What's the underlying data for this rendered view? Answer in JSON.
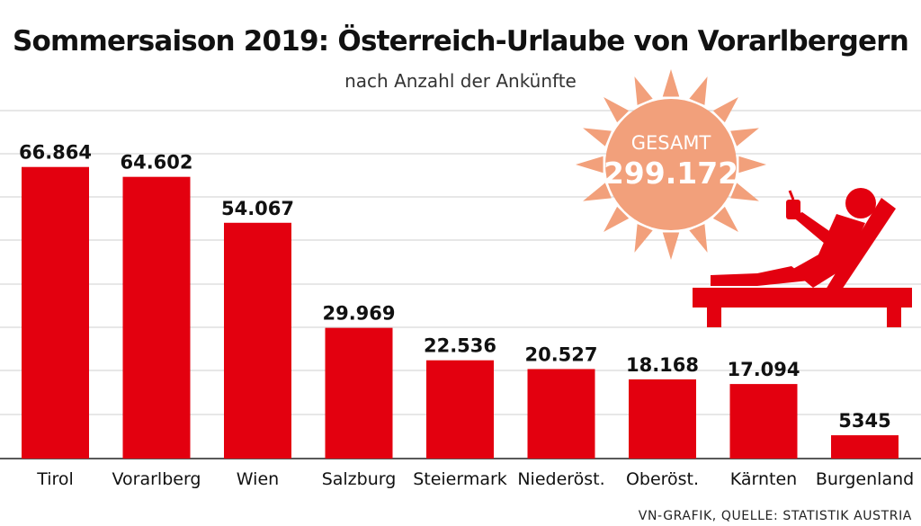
{
  "chart_data": {
    "type": "bar",
    "title": "Sommersaison 2019: Österreich-Urlaube von Vorarlbergern",
    "subtitle": "nach Anzahl der Ankünfte",
    "categories": [
      "Tirol",
      "Vorarlberg",
      "Wien",
      "Salzburg",
      "Steiermark",
      "Niederöst.",
      "Oberöst.",
      "Kärnten",
      "Burgenland"
    ],
    "values": [
      66864,
      64602,
      54067,
      29969,
      22536,
      20527,
      18168,
      17094,
      5345
    ],
    "value_labels": [
      "66.864",
      "64.602",
      "54.067",
      "29.969",
      "22.536",
      "20.527",
      "18.168",
      "17.094",
      "5345"
    ],
    "ylim": [
      0,
      70000
    ],
    "grid": true,
    "xlabel": "",
    "ylabel": "",
    "annotation": {
      "label": "GESAMT",
      "value": "299.172"
    }
  },
  "colors": {
    "bar": "#e3000f",
    "sun": "#f2a07b",
    "grid": "#cfcfcf",
    "text": "#111111"
  },
  "icons": {
    "sun": "sun-icon",
    "lounger": "deck-chair-person-icon"
  },
  "source": "VN-GRAFIK, QUELLE: STATISTIK AUSTRIA"
}
